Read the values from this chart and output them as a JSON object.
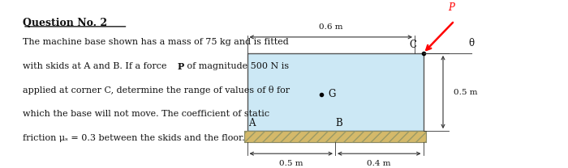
{
  "page_bg": "#ffffff",
  "title": "Question No. 2",
  "body_line1": "The machine base shown has a mass of 75 kg and is fitted",
  "body_line2a": "with skids at A and B. If a force ",
  "body_line2b": "P",
  "body_line2c": " of magnitude 500 N is",
  "body_line3": "applied at corner C, determine the range of values of θ for",
  "body_line4": "which the base will not move. The coefficient of static",
  "body_line5": "friction μₛ = 0.3 between the skids and the floor.",
  "box_facecolor": "#cce8f5",
  "box_edgecolor": "#555555",
  "floor_facecolor": "#d4b96a",
  "floor_edgecolor": "#666666",
  "dim_color": "#333333",
  "label_color": "#111111",
  "arrow_color": "red",
  "dim_06": "0.6 m",
  "dim_05v": "0.5 m",
  "dim_05h": "0.5 m",
  "dim_04": "0.4 m",
  "label_A": "A",
  "label_B": "B",
  "label_C": "C",
  "label_G": "G",
  "label_P": "P",
  "label_theta": "θ",
  "bx0": 0.435,
  "by0": 0.2,
  "bx1": 0.745,
  "by1": 0.68
}
